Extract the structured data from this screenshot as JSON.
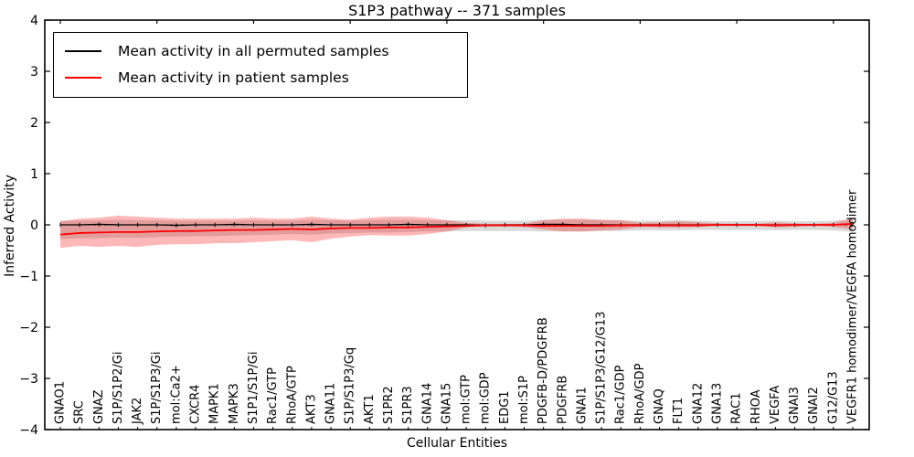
{
  "figure": {
    "background": "#ffffff"
  },
  "chart_data": {
    "type": "line",
    "title": "S1P3 pathway -- 371 samples",
    "xlabel": "Cellular Entities",
    "ylabel": "Inferred Activity",
    "ylim": [
      -4,
      4
    ],
    "yticks": [
      -4,
      -3,
      -2,
      -1,
      0,
      1,
      2,
      3,
      4
    ],
    "ytick_labels": [
      "−4",
      "−3",
      "−2",
      "−1",
      "0",
      "1",
      "2",
      "3",
      "4"
    ],
    "grid": false,
    "legend_position": "upper left",
    "zero_line_style": "dashed",
    "categories": [
      "GNAO1",
      "SRC",
      "GNAZ",
      "S1P/S1P2/Gi",
      "JAK2",
      "S1P/S1P3/Gi",
      "mol:Ca2+",
      "CXCR4",
      "MAPK1",
      "MAPK3",
      "S1P1/S1P/Gi",
      "Rac1/GTP",
      "RhoA/GTP",
      "AKT3",
      "GNA11",
      "S1P/S1P3/Gq",
      "AKT1",
      "S1PR2",
      "S1PR3",
      "GNA14",
      "GNA15",
      "mol:GTP",
      "mol:GDP",
      "EDG1",
      "mol:S1P",
      "PDGFB-D/PDGFRB",
      "PDGFRB",
      "GNAI1",
      "S1P/S1P3/G12/G13",
      "Rac1/GDP",
      "RhoA/GDP",
      "GNAQ",
      "FLT1",
      "GNA12",
      "GNA13",
      "RAC1",
      "RHOA",
      "VEGFA",
      "GNAI3",
      "GNAI2",
      "G12/G13",
      "VEGFR1 homodimer/VEGFA homodimer"
    ],
    "series": [
      {
        "name": "Mean activity in all permuted samples",
        "color": "#000000",
        "marker": "tick",
        "values": [
          0,
          0,
          0.01,
          0,
          0,
          0,
          -0.01,
          0,
          0,
          0.01,
          0,
          0,
          0,
          0.01,
          0,
          0,
          0,
          0,
          0.01,
          0,
          0,
          0,
          -0.01,
          0,
          0,
          0.01,
          0.01,
          0,
          0,
          0,
          0,
          0,
          0,
          0,
          0,
          0,
          0,
          0,
          0,
          0,
          0,
          0.02
        ]
      },
      {
        "name": "Mean activity in patient samples",
        "color": "#ff0000",
        "marker": "none",
        "values": [
          -0.19,
          -0.16,
          -0.15,
          -0.14,
          -0.14,
          -0.13,
          -0.12,
          -0.12,
          -0.11,
          -0.1,
          -0.1,
          -0.09,
          -0.08,
          -0.09,
          -0.07,
          -0.06,
          -0.06,
          -0.05,
          -0.05,
          -0.04,
          -0.03,
          -0.02,
          -0.01,
          -0.01,
          -0.01,
          -0.02,
          -0.02,
          -0.02,
          -0.02,
          -0.01,
          -0.01,
          -0.01,
          -0.01,
          -0.01,
          0,
          0,
          0,
          -0.01,
          0,
          0,
          0,
          0.02
        ]
      }
    ],
    "bands": [
      {
        "name": "std band of permuted samples",
        "color": "rgba(0,0,0,0.15)",
        "upper": [
          0.08,
          0.08,
          0.09,
          0.1,
          0.09,
          0.09,
          0.08,
          0.08,
          0.08,
          0.08,
          0.09,
          0.08,
          0.08,
          0.1,
          0.09,
          0.08,
          0.09,
          0.1,
          0.1,
          0.09,
          0.09,
          0.09,
          0.08,
          0.08,
          0.08,
          0.1,
          0.1,
          0.1,
          0.09,
          0.09,
          0.08,
          0.08,
          0.09,
          0.08,
          0.07,
          0.07,
          0.07,
          0.08,
          0.07,
          0.07,
          0.08,
          0.12
        ],
        "lower": [
          -0.28,
          -0.26,
          -0.26,
          -0.25,
          -0.25,
          -0.24,
          -0.23,
          -0.22,
          -0.22,
          -0.21,
          -0.2,
          -0.19,
          -0.18,
          -0.19,
          -0.17,
          -0.16,
          -0.15,
          -0.15,
          -0.14,
          -0.13,
          -0.13,
          -0.12,
          -0.12,
          -0.12,
          -0.12,
          -0.13,
          -0.13,
          -0.13,
          -0.12,
          -0.12,
          -0.11,
          -0.11,
          -0.11,
          -0.1,
          -0.1,
          -0.1,
          -0.1,
          -0.11,
          -0.1,
          -0.1,
          -0.11,
          -0.14
        ]
      },
      {
        "name": "std band of patient samples",
        "color": "rgba(255,0,0,0.28)",
        "upper": [
          0.07,
          0.12,
          0.14,
          0.18,
          0.16,
          0.14,
          0.12,
          0.12,
          0.12,
          0.12,
          0.14,
          0.12,
          0.12,
          0.16,
          0.12,
          0.1,
          0.14,
          0.16,
          0.16,
          0.14,
          0.09,
          0.04,
          0.02,
          0.02,
          0.02,
          0.09,
          0.12,
          0.12,
          0.1,
          0.09,
          0.04,
          0.05,
          0.07,
          0.05,
          0.03,
          0.02,
          0.02,
          0.05,
          0.03,
          0.02,
          0.04,
          0.12
        ],
        "lower": [
          -0.45,
          -0.41,
          -0.43,
          -0.41,
          -0.43,
          -0.39,
          -0.38,
          -0.38,
          -0.36,
          -0.36,
          -0.34,
          -0.32,
          -0.3,
          -0.34,
          -0.27,
          -0.23,
          -0.2,
          -0.21,
          -0.21,
          -0.18,
          -0.13,
          -0.05,
          -0.02,
          -0.02,
          -0.04,
          -0.09,
          -0.13,
          -0.13,
          -0.11,
          -0.09,
          -0.04,
          -0.05,
          -0.05,
          -0.04,
          -0.02,
          -0.02,
          -0.02,
          -0.05,
          -0.04,
          -0.02,
          -0.04,
          -0.09
        ]
      }
    ]
  }
}
